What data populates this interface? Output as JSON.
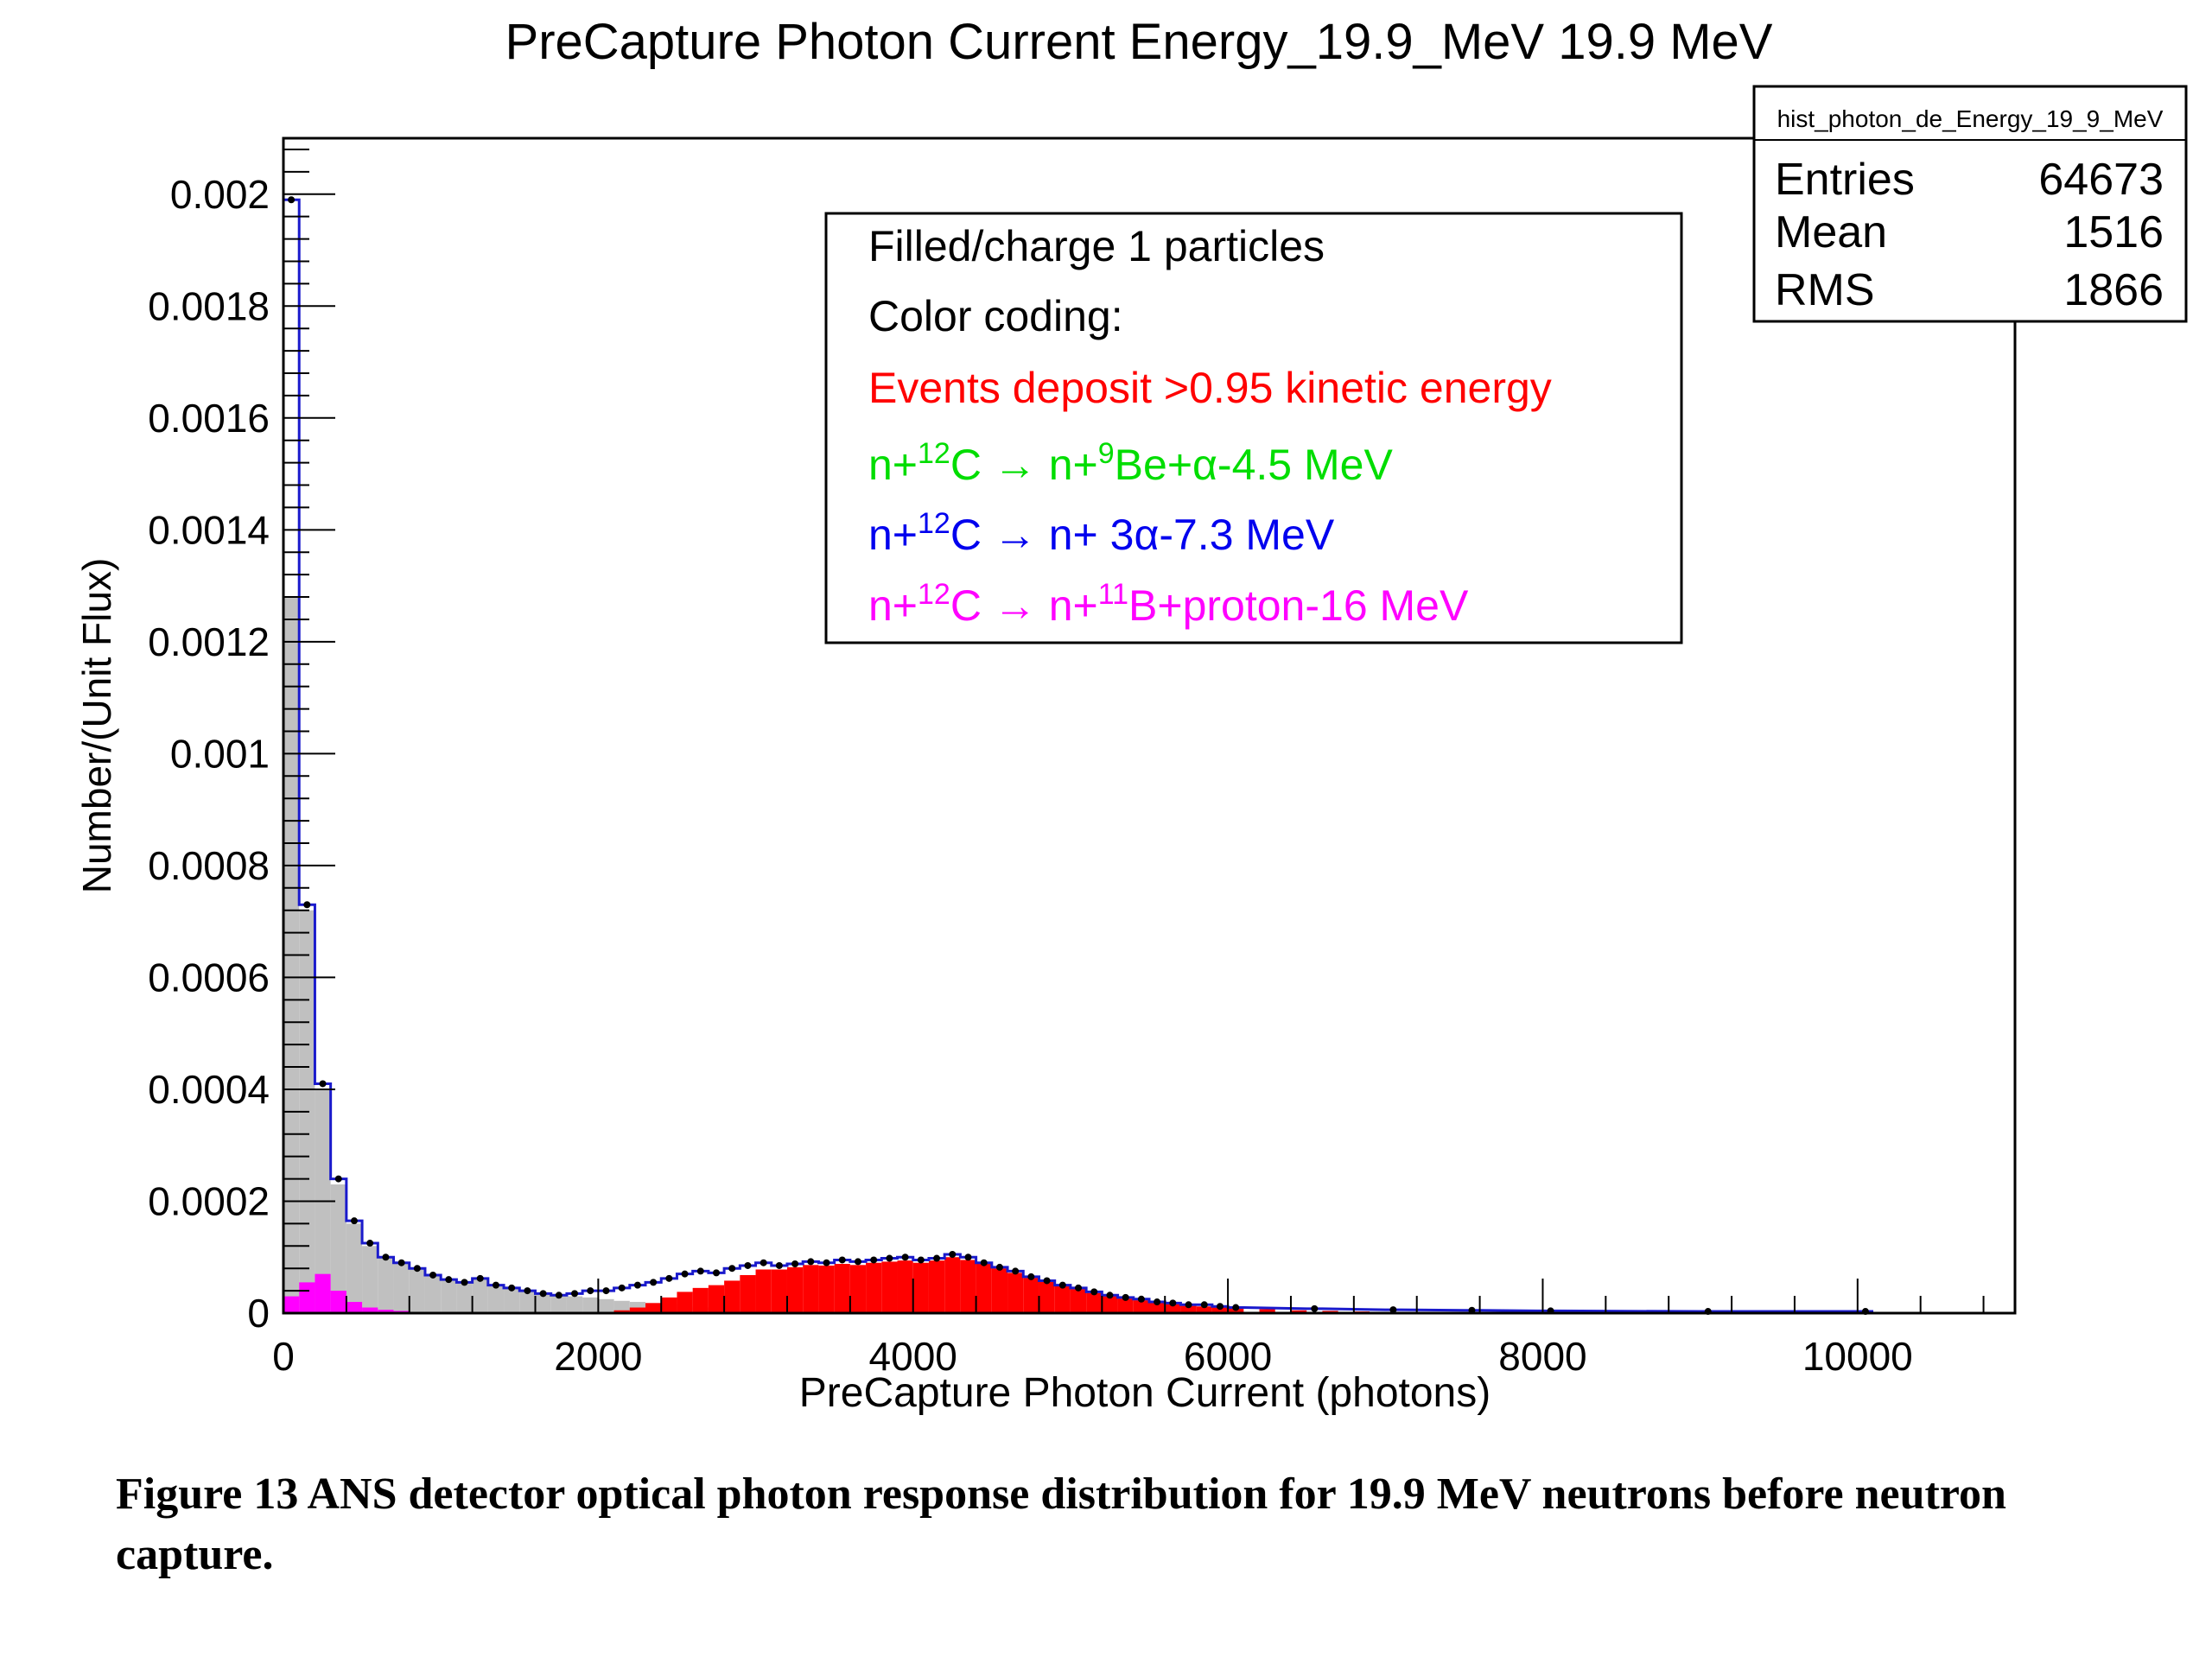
{
  "chart_data": {
    "type": "bar",
    "title": "PreCapture Photon Current Energy_19.9_MeV 19.9 MeV",
    "xlabel": "PreCapture Photon Current (photons)",
    "ylabel": "Number/(Unit Flux)",
    "xlim": [
      0,
      11000
    ],
    "ylim": [
      0,
      0.0021
    ],
    "xticks": [
      0,
      2000,
      4000,
      6000,
      8000,
      10000
    ],
    "xtick_labels": [
      "0",
      "2000",
      "4000",
      "6000",
      "8000",
      "10000"
    ],
    "yticks": [
      0,
      0.0002,
      0.0004,
      0.0006,
      0.0008,
      0.001,
      0.0012,
      0.0014,
      0.0016,
      0.0018,
      0.002
    ],
    "ytick_labels": [
      "0",
      "0.0002",
      "0.0004",
      "0.0006",
      "0.0008",
      "0.001",
      "0.0012",
      "0.0014",
      "0.0016",
      "0.0018",
      "0.002"
    ],
    "bin_width": 100,
    "grid": false,
    "series": [
      {
        "color": "#1a1acc",
        "style": "outline",
        "x": [
          0,
          100,
          200,
          300,
          400,
          500,
          600,
          700,
          800,
          900,
          1000,
          1100,
          1200,
          1300,
          1400,
          1500,
          1600,
          1700,
          1800,
          1900,
          2000,
          2100,
          2200,
          2300,
          2400,
          2500,
          2600,
          2700,
          2800,
          2900,
          3000,
          3100,
          3200,
          3300,
          3400,
          3500,
          3600,
          3700,
          3800,
          3900,
          4000,
          4100,
          4200,
          4300,
          4400,
          4500,
          4600,
          4700,
          4800,
          4900,
          5000,
          5100,
          5200,
          5300,
          5400,
          5500,
          5600,
          5700,
          5800,
          5900,
          6000,
          6500,
          7000,
          7500,
          8000,
          9000,
          10000
        ],
        "values": [
          0.00199,
          0.00073,
          0.00041,
          0.00024,
          0.000165,
          0.000125,
          0.0001,
          9e-05,
          8e-05,
          6.8e-05,
          6e-05,
          5.5e-05,
          6.2e-05,
          5e-05,
          4.5e-05,
          4e-05,
          3.5e-05,
          3.2e-05,
          3.5e-05,
          4e-05,
          4e-05,
          4.5e-05,
          5e-05,
          5.5e-05,
          6.2e-05,
          7e-05,
          7.5e-05,
          7.2e-05,
          8e-05,
          8.5e-05,
          9e-05,
          8.5e-05,
          8.8e-05,
          9.2e-05,
          9e-05,
          9.5e-05,
          9.2e-05,
          9.5e-05,
          9.8e-05,
          0.0001,
          9.5e-05,
          9.8e-05,
          0.000105,
          0.0001,
          9e-05,
          8.2e-05,
          7.5e-05,
          6.5e-05,
          5.8e-05,
          5e-05,
          4.5e-05,
          3.8e-05,
          3.2e-05,
          2.8e-05,
          2.5e-05,
          2e-05,
          1.8e-05,
          1.5e-05,
          1.5e-05,
          1.2e-05,
          1e-05,
          8e-06,
          6e-06,
          5e-06,
          4e-06,
          3e-06,
          3e-06
        ]
      },
      {
        "color": "#c0c0c0",
        "style": "filled",
        "x": [
          0,
          100,
          200,
          300,
          400,
          500,
          600,
          700,
          800,
          900,
          1000,
          1100,
          1200,
          1300,
          1400,
          1500,
          1600,
          1700,
          1800,
          1900,
          2000,
          2100,
          2200,
          2300,
          2400,
          2500,
          2600,
          2700,
          2800,
          2900,
          3000
        ],
        "values": [
          0.00128,
          0.00072,
          0.0004,
          0.00023,
          0.00016,
          0.00012,
          0.0001,
          9e-05,
          8e-05,
          6.8e-05,
          6e-05,
          5.5e-05,
          6.2e-05,
          5e-05,
          4.5e-05,
          4e-05,
          3.5e-05,
          3.2e-05,
          3e-05,
          2.8e-05,
          2.5e-05,
          2.2e-05,
          2e-05,
          1.8e-05,
          1.5e-05,
          1.2e-05,
          1e-05,
          8e-06,
          6e-06,
          5e-06,
          4e-06
        ]
      },
      {
        "color": "#ff0000",
        "style": "filled",
        "x": [
          2100,
          2200,
          2300,
          2400,
          2500,
          2600,
          2700,
          2800,
          2900,
          3000,
          3100,
          3200,
          3300,
          3400,
          3500,
          3600,
          3700,
          3800,
          3900,
          4000,
          4100,
          4200,
          4300,
          4400,
          4500,
          4600,
          4700,
          4800,
          4900,
          5000,
          5100,
          5200,
          5300,
          5400,
          5500,
          5600,
          5700,
          5800,
          5900,
          6000,
          6200,
          6400,
          6600,
          6800,
          7000
        ],
        "values": [
          5e-06,
          1e-05,
          1.8e-05,
          2.8e-05,
          3.8e-05,
          4.5e-05,
          5e-05,
          5.8e-05,
          6.8e-05,
          7.8e-05,
          7.8e-05,
          8.2e-05,
          8.6e-05,
          8.5e-05,
          8.8e-05,
          8.6e-05,
          9e-05,
          9.2e-05,
          9.4e-05,
          9e-05,
          9.4e-05,
          0.0001,
          9.5e-05,
          8.8e-05,
          8e-05,
          7.2e-05,
          6.3e-05,
          5.6e-05,
          4.8e-05,
          4.3e-05,
          3.6e-05,
          3e-05,
          2.6e-05,
          2.3e-05,
          1.8e-05,
          1.6e-05,
          1.3e-05,
          1.2e-05,
          1e-05,
          9e-06,
          7e-06,
          5e-06,
          4e-06,
          3e-06,
          2e-06
        ]
      },
      {
        "color": "#ff00ff",
        "style": "filled",
        "x": [
          0,
          100,
          200,
          300,
          400,
          500,
          600,
          700
        ],
        "values": [
          3e-05,
          5.5e-05,
          7e-05,
          4e-05,
          2e-05,
          1e-05,
          6e-06,
          4e-06
        ]
      }
    ],
    "legend": {
      "position": "top-center",
      "entries": [
        {
          "text": "Filled/charge 1 particles",
          "color": "#000000"
        },
        {
          "text": "Color coding:",
          "color": "#000000"
        },
        {
          "text": "Events deposit >0.95 kinetic energy",
          "color": "#ff0000"
        },
        {
          "pre": "n+",
          "sup1": "12",
          "mid": "C → n+",
          "sup2": "9",
          "post": "Be+α-4.5 MeV",
          "color": "#00dd00"
        },
        {
          "pre": "n+",
          "sup1": "12",
          "mid": "C → n+ 3α-7.3 MeV",
          "sup2": "",
          "post": "",
          "color": "#0000ee"
        },
        {
          "pre": "n+",
          "sup1": "12",
          "mid": "C → n+",
          "sup2": "11",
          "post": "B+proton-16 MeV",
          "color": "#ff00ff"
        }
      ]
    },
    "stats_box": {
      "name": "hist_photon_de_Energy_19_9_MeV",
      "rows": [
        {
          "label": "Entries",
          "value": "64673"
        },
        {
          "label": "Mean",
          "value": "1516"
        },
        {
          "label": "RMS",
          "value": "1866"
        }
      ]
    }
  },
  "caption": "Figure 13  ANS detector optical photon response distribution for  19.9 MeV neutrons before neutron capture."
}
